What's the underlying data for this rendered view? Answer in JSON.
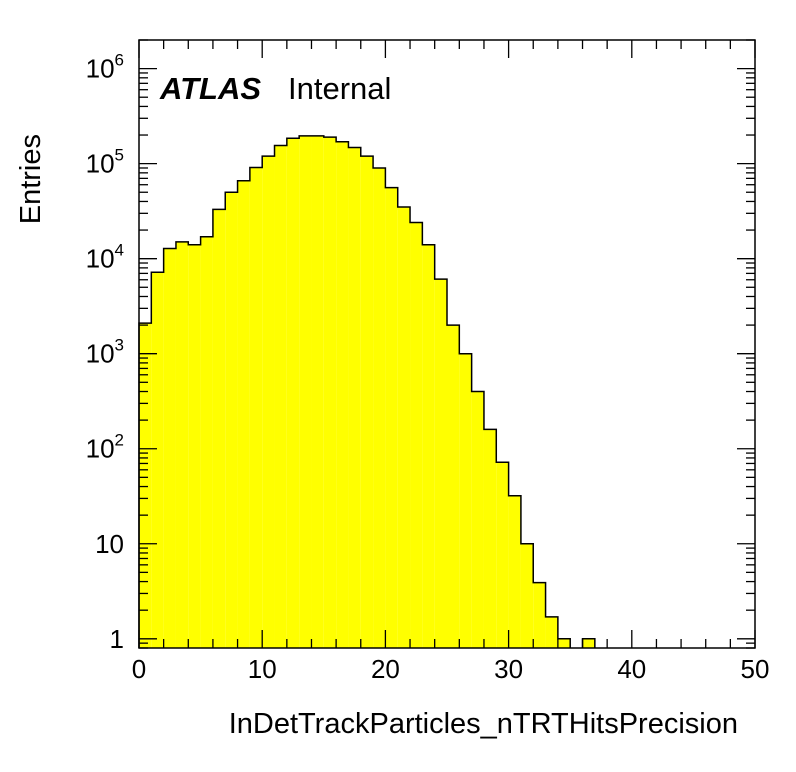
{
  "chart_data": {
    "type": "bar",
    "style": "filled step histogram",
    "fill_color": "#ffff00",
    "line_color": "#000000",
    "x": {
      "label": "InDetTrackParticles_nTRTHitsPrecision",
      "range": [
        0,
        50
      ],
      "ticks": [
        0,
        10,
        20,
        30,
        40,
        50
      ],
      "tick_labels": [
        "0",
        "10",
        "20",
        "30",
        "40",
        "50"
      ],
      "bin_width": 1
    },
    "y": {
      "label": "Entries",
      "scale": "log",
      "range": [
        0.8,
        2000000
      ],
      "ticks": [
        1,
        10,
        100,
        1000,
        10000,
        100000,
        1000000
      ],
      "tick_labels": [
        {
          "base": "1",
          "exp": ""
        },
        {
          "base": "10",
          "exp": ""
        },
        {
          "base": "10",
          "exp": "2"
        },
        {
          "base": "10",
          "exp": "3"
        },
        {
          "base": "10",
          "exp": "4"
        },
        {
          "base": "10",
          "exp": "5"
        },
        {
          "base": "10",
          "exp": "6"
        }
      ]
    },
    "bins": [
      0,
      1,
      2,
      3,
      4,
      5,
      6,
      7,
      8,
      9,
      10,
      11,
      12,
      13,
      14,
      15,
      16,
      17,
      18,
      19,
      20,
      21,
      22,
      23,
      24,
      25,
      26,
      27,
      28,
      29,
      30,
      31,
      32,
      33,
      34,
      35,
      36,
      37
    ],
    "values": [
      2100,
      7200,
      12800,
      15000,
      14000,
      17000,
      33000,
      50000,
      66000,
      91000,
      120000,
      155000,
      185000,
      196000,
      196000,
      190000,
      170000,
      148000,
      120000,
      90000,
      56000,
      35000,
      24000,
      14000,
      6100,
      2000,
      1000,
      400,
      160,
      72,
      32,
      10,
      3.9,
      1.7,
      1,
      0,
      1,
      0
    ],
    "annotations": {
      "experiment": "ATLAS",
      "status": "Internal"
    }
  }
}
